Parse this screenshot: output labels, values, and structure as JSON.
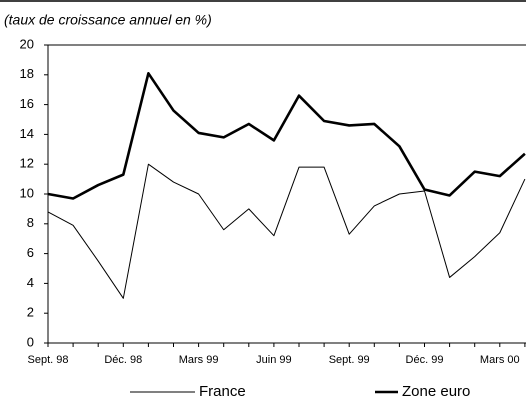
{
  "chart_data": {
    "type": "line",
    "subtitle": "(taux de croissance annuel en %)",
    "categories": [
      "Sept. 98",
      null,
      null,
      "Déc. 98",
      null,
      null,
      "Mars 99",
      null,
      null,
      "Juin 99",
      null,
      null,
      "Sept. 99",
      null,
      null,
      "Déc. 99",
      null,
      null,
      "Mars 00",
      null
    ],
    "series": [
      {
        "name": "France",
        "color": "#000000",
        "values": [
          8.8,
          7.9,
          5.5,
          3.0,
          12.0,
          10.8,
          10.0,
          7.6,
          9.0,
          7.2,
          11.8,
          11.8,
          7.3,
          9.2,
          10.0,
          10.2,
          4.4,
          5.8,
          7.4,
          11.0
        ]
      },
      {
        "name": "Zone euro",
        "color": "#000000",
        "values": [
          10.0,
          9.7,
          10.6,
          11.3,
          18.1,
          15.6,
          14.1,
          13.8,
          14.7,
          13.6,
          16.6,
          14.9,
          14.6,
          14.7,
          13.2,
          10.3,
          9.9,
          11.5,
          11.2,
          12.7
        ]
      }
    ],
    "ylim": [
      0,
      20
    ],
    "yticks": [
      0,
      2,
      4,
      6,
      8,
      10,
      12,
      14,
      16,
      18,
      20
    ],
    "legend": "bottom"
  }
}
